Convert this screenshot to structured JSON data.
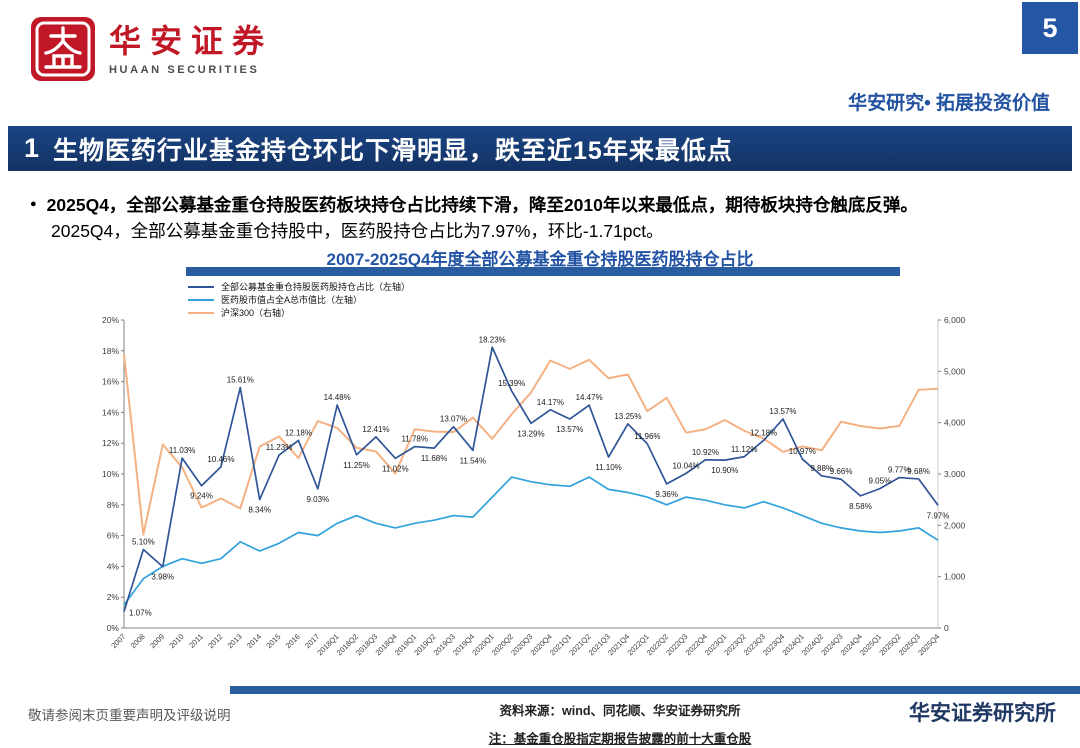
{
  "page": {
    "number": "5"
  },
  "header": {
    "brand_cn": "华安证券",
    "brand_en": "HUAAN SECURITIES",
    "slogan": "华安研究• 拓展投资价值"
  },
  "title_bar": {
    "index": "1",
    "text": "生物医药行业基金持仓环比下滑明显，跌至近15年来最低点"
  },
  "bullets": {
    "line1": "2025Q4，全部公募基金重仓持股医药板块持仓占比持续下滑，降至2010年以来最低点，期待板块持仓触底反弹。",
    "line2": "2025Q4，全部公募基金重仓持股中，医药股持仓占比为7.97%，环比-1.71pct。"
  },
  "chart_data": {
    "type": "line",
    "title": "2007-2025Q4年度全部公募基金重仓持股医药股持仓占比",
    "legend_position": "top-left",
    "grid": false,
    "categories": [
      "2007",
      "2008",
      "2009",
      "2010",
      "2011",
      "2012",
      "2013",
      "2014",
      "2015",
      "2016",
      "2017",
      "2018Q1",
      "2018Q2",
      "2018Q3",
      "2018Q4",
      "2019Q1",
      "2019Q2",
      "2019Q3",
      "2019Q4",
      "2020Q1",
      "2020Q2",
      "2020Q3",
      "2020Q4",
      "2021Q1",
      "2021Q2",
      "2021Q3",
      "2021Q4",
      "2022Q1",
      "2022Q2",
      "2022Q3",
      "2022Q4",
      "2023Q1",
      "2023Q2",
      "2023Q3",
      "2023Q4",
      "2024Q1",
      "2024Q2",
      "2024Q3",
      "2024Q4",
      "2025Q1",
      "2025Q2",
      "2025Q3",
      "2025Q4"
    ],
    "series": [
      {
        "name": "全部公募基金重仓持股医药股持仓占比（左轴）",
        "axis": "left",
        "color": "#2f5597",
        "labeled": true,
        "values": [
          1.07,
          5.1,
          3.98,
          11.03,
          9.24,
          10.46,
          15.61,
          8.34,
          11.23,
          12.18,
          9.03,
          14.48,
          11.25,
          12.41,
          11.02,
          11.78,
          11.68,
          13.07,
          11.54,
          18.23,
          15.39,
          13.29,
          14.17,
          13.57,
          14.47,
          11.1,
          13.25,
          11.96,
          9.36,
          10.04,
          10.92,
          10.9,
          11.12,
          12.18,
          13.57,
          10.97,
          9.88,
          9.66,
          8.58,
          9.05,
          9.77,
          9.68,
          7.97
        ]
      },
      {
        "name": "医药股市值占全A总市值比（左轴）",
        "axis": "left",
        "color": "#31a2dc",
        "labeled": false,
        "values": [
          1.5,
          3.2,
          4.0,
          4.5,
          4.2,
          4.5,
          5.6,
          5.0,
          5.5,
          6.2,
          6.0,
          6.8,
          7.3,
          6.8,
          6.5,
          6.8,
          7.0,
          7.3,
          7.2,
          8.5,
          9.8,
          9.5,
          9.3,
          9.2,
          9.8,
          9.0,
          8.8,
          8.5,
          8.0,
          8.5,
          8.3,
          8.0,
          7.8,
          8.2,
          7.8,
          7.3,
          6.8,
          6.5,
          6.3,
          6.2,
          6.3,
          6.5,
          5.7
        ]
      },
      {
        "name": "沪深300（右轴）",
        "axis": "right",
        "color": "#f4b183",
        "labeled": false,
        "values": [
          5338,
          1817,
          3576,
          3128,
          2346,
          2523,
          2331,
          3534,
          3731,
          3310,
          4031,
          3898,
          3511,
          3439,
          3011,
          3872,
          3826,
          3815,
          4097,
          3686,
          4164,
          4587,
          5211,
          5048,
          5224,
          4866,
          4940,
          4223,
          4485,
          3805,
          3872,
          4051,
          3842,
          3690,
          3432,
          3537,
          3462,
          4018,
          3935,
          3887,
          3936,
          4640,
          4660
        ]
      }
    ],
    "left_axis": {
      "min": 0,
      "max": 20,
      "ticks": [
        "0%",
        "2%",
        "4%",
        "6%",
        "8%",
        "10%",
        "12%",
        "14%",
        "16%",
        "18%",
        "20%"
      ]
    },
    "right_axis": {
      "min": 0,
      "max": 6000,
      "ticks": [
        "0",
        "1,000",
        "2,000",
        "3,000",
        "4,000",
        "5,000",
        "6,000"
      ]
    }
  },
  "footer": {
    "disclaimer": "敬请参阅末页重要声明及评级说明",
    "source": "资料来源：wind、同花顺、华安证券研究所",
    "note": "注：基金重仓股指定期报告披露的前十大重仓股",
    "institute": "华安证券研究所"
  },
  "colors": {
    "brand_red": "#c01826",
    "navy_bar": "#14386f",
    "accent_bar": "#2a5d9f",
    "chart_title_blue": "#2353a4"
  }
}
